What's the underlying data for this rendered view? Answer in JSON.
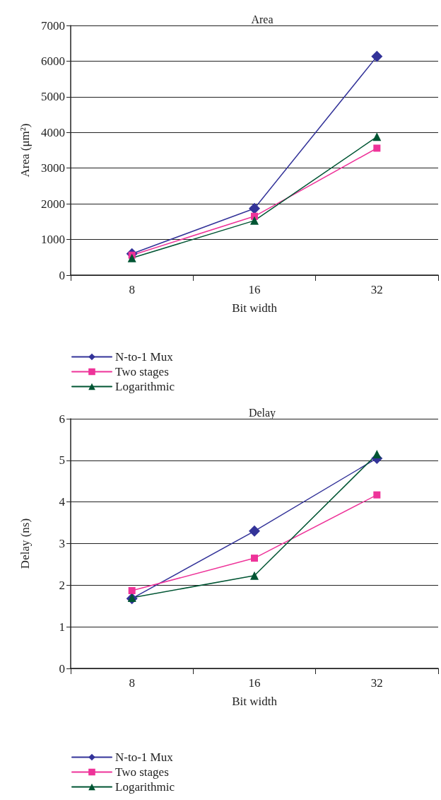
{
  "chart_data": [
    {
      "type": "line",
      "title": "Area",
      "xlabel": "Bit width",
      "ylabel": "Area (μm²)",
      "categories": [
        "8",
        "16",
        "32"
      ],
      "ylim": [
        0,
        7000
      ],
      "yticks": [
        0,
        1000,
        2000,
        3000,
        4000,
        5000,
        6000,
        7000
      ],
      "grid": "y",
      "legend": "bottom left",
      "series": [
        {
          "name": "N-to-1 Mux",
          "color": "#333399",
          "marker": "diamond",
          "values": [
            600,
            1870,
            6130
          ]
        },
        {
          "name": "Two stages",
          "color": "#ee3399",
          "marker": "square",
          "values": [
            560,
            1650,
            3560
          ]
        },
        {
          "name": "Logarithmic",
          "color": "#005533",
          "marker": "triangle",
          "values": [
            480,
            1530,
            3880
          ]
        }
      ]
    },
    {
      "type": "line",
      "title": "Delay",
      "xlabel": "Bit width",
      "ylabel": "Delay (ns)",
      "categories": [
        "8",
        "16",
        "32"
      ],
      "ylim": [
        0,
        6
      ],
      "yticks": [
        0,
        1,
        2,
        3,
        4,
        5,
        6
      ],
      "grid": "y",
      "legend": "bottom left",
      "series": [
        {
          "name": "N-to-1 Mux",
          "color": "#333399",
          "marker": "diamond",
          "values": [
            1.68,
            3.3,
            5.05
          ]
        },
        {
          "name": "Two stages",
          "color": "#ee3399",
          "marker": "square",
          "values": [
            1.87,
            2.65,
            4.17
          ]
        },
        {
          "name": "Logarithmic",
          "color": "#005533",
          "marker": "triangle",
          "values": [
            1.7,
            2.23,
            5.15
          ]
        }
      ]
    }
  ]
}
